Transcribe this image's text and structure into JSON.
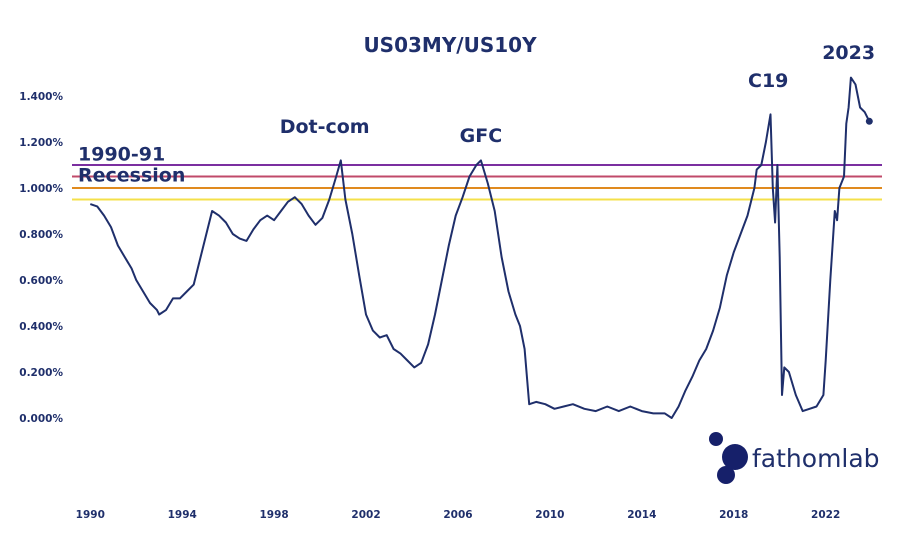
{
  "chart_data": {
    "type": "line",
    "title": "US03MY/US10Y",
    "xlabel": "",
    "ylabel": "",
    "xlim": [
      1988.9,
      2024.8
    ],
    "ylim": [
      -0.4,
      1.6
    ],
    "yticks": [
      "0.000%",
      "0.200%",
      "0.400%",
      "0.600%",
      "0.800%",
      "1.000%",
      "1.200%",
      "1.400%"
    ],
    "ytick_values": [
      0,
      0.2,
      0.4,
      0.6,
      0.8,
      1.0,
      1.2,
      1.4
    ],
    "xticks": [
      "1990",
      "1994",
      "1998",
      "2002",
      "2006",
      "2010",
      "2014",
      "2018",
      "2022"
    ],
    "xtick_values": [
      1990,
      1994,
      1998,
      2002,
      2006,
      2010,
      2014,
      2018,
      2022
    ],
    "grid": false,
    "legend": "none",
    "reference_lines": [
      {
        "y": 1.1,
        "color": "#7b2fa0"
      },
      {
        "y": 1.05,
        "color": "#c04a6a"
      },
      {
        "y": 1.0,
        "color": "#e08a1e"
      },
      {
        "y": 0.95,
        "color": "#f4e04a"
      }
    ],
    "annotations": [
      {
        "text": [
          "1990-91",
          "Recession"
        ],
        "x": 1990.6,
        "y": 1.12
      },
      {
        "text": [
          "Dot-com"
        ],
        "x": 2000.2,
        "y": 1.24
      },
      {
        "text": [
          "GFC"
        ],
        "x": 2007.0,
        "y": 1.2
      },
      {
        "text": [
          "C19"
        ],
        "x": 2019.5,
        "y": 1.44
      },
      {
        "text": [
          "2023"
        ],
        "x": 2023.0,
        "y": 1.56
      }
    ],
    "series": [
      {
        "color": "#1f2f6b",
        "x": [
          1990.0,
          1990.3,
          1990.6,
          1990.9,
          1991.2,
          1991.5,
          1991.8,
          1992.0,
          1992.3,
          1992.6,
          1992.9,
          1993.0,
          1993.3,
          1993.6,
          1993.9,
          1994.2,
          1994.5,
          1994.8,
          1995.1,
          1995.3,
          1995.6,
          1995.9,
          1996.2,
          1996.5,
          1996.8,
          1997.1,
          1997.4,
          1997.7,
          1998.0,
          1998.3,
          1998.6,
          1998.9,
          1999.2,
          1999.5,
          1999.8,
          2000.1,
          2000.4,
          2000.7,
          2000.9,
          2001.1,
          2001.4,
          2001.7,
          2002.0,
          2002.3,
          2002.6,
          2002.9,
          2003.2,
          2003.5,
          2003.8,
          2004.1,
          2004.4,
          2004.7,
          2005.0,
          2005.3,
          2005.6,
          2005.9,
          2006.2,
          2006.5,
          2006.8,
          2007.0,
          2007.3,
          2007.6,
          2007.9,
          2008.2,
          2008.5,
          2008.7,
          2008.9,
          2009.1,
          2009.4,
          2009.8,
          2010.2,
          2010.6,
          2011.0,
          2011.5,
          2012.0,
          2012.5,
          2013.0,
          2013.5,
          2014.0,
          2014.5,
          2015.0,
          2015.3,
          2015.6,
          2015.9,
          2016.2,
          2016.5,
          2016.8,
          2017.1,
          2017.4,
          2017.7,
          2018.0,
          2018.3,
          2018.6,
          2018.9,
          2019.0,
          2019.2,
          2019.4,
          2019.6,
          2019.7,
          2019.8,
          2019.9,
          2020.0,
          2020.1,
          2020.2,
          2020.4,
          2020.7,
          2021.0,
          2021.3,
          2021.6,
          2021.9,
          2022.0,
          2022.2,
          2022.4,
          2022.5,
          2022.6,
          2022.8,
          2022.9,
          2023.0,
          2023.1,
          2023.3,
          2023.5,
          2023.7,
          2023.9
        ],
        "values": [
          0.93,
          0.92,
          0.88,
          0.83,
          0.75,
          0.7,
          0.65,
          0.6,
          0.55,
          0.5,
          0.47,
          0.45,
          0.47,
          0.52,
          0.52,
          0.55,
          0.58,
          0.7,
          0.82,
          0.9,
          0.88,
          0.85,
          0.8,
          0.78,
          0.77,
          0.82,
          0.86,
          0.88,
          0.86,
          0.9,
          0.94,
          0.96,
          0.93,
          0.88,
          0.84,
          0.87,
          0.95,
          1.05,
          1.12,
          0.95,
          0.8,
          0.62,
          0.45,
          0.38,
          0.35,
          0.36,
          0.3,
          0.28,
          0.25,
          0.22,
          0.24,
          0.32,
          0.45,
          0.6,
          0.75,
          0.88,
          0.96,
          1.05,
          1.1,
          1.12,
          1.02,
          0.9,
          0.7,
          0.55,
          0.45,
          0.4,
          0.3,
          0.06,
          0.07,
          0.06,
          0.04,
          0.05,
          0.06,
          0.04,
          0.03,
          0.05,
          0.03,
          0.05,
          0.03,
          0.02,
          0.02,
          0.0,
          0.05,
          0.12,
          0.18,
          0.25,
          0.3,
          0.38,
          0.48,
          0.62,
          0.72,
          0.8,
          0.88,
          1.0,
          1.08,
          1.1,
          1.2,
          1.32,
          1.0,
          0.85,
          1.1,
          0.7,
          0.1,
          0.22,
          0.2,
          0.1,
          0.03,
          0.04,
          0.05,
          0.1,
          0.25,
          0.6,
          0.9,
          0.86,
          1.0,
          1.05,
          1.28,
          1.35,
          1.48,
          1.45,
          1.35,
          1.33,
          1.29
        ]
      }
    ]
  },
  "brand": {
    "name": "fathomlab",
    "logo_color": "#16206a"
  },
  "colors": {
    "series": "#1f2f6b",
    "text": "#1f2f6b"
  }
}
